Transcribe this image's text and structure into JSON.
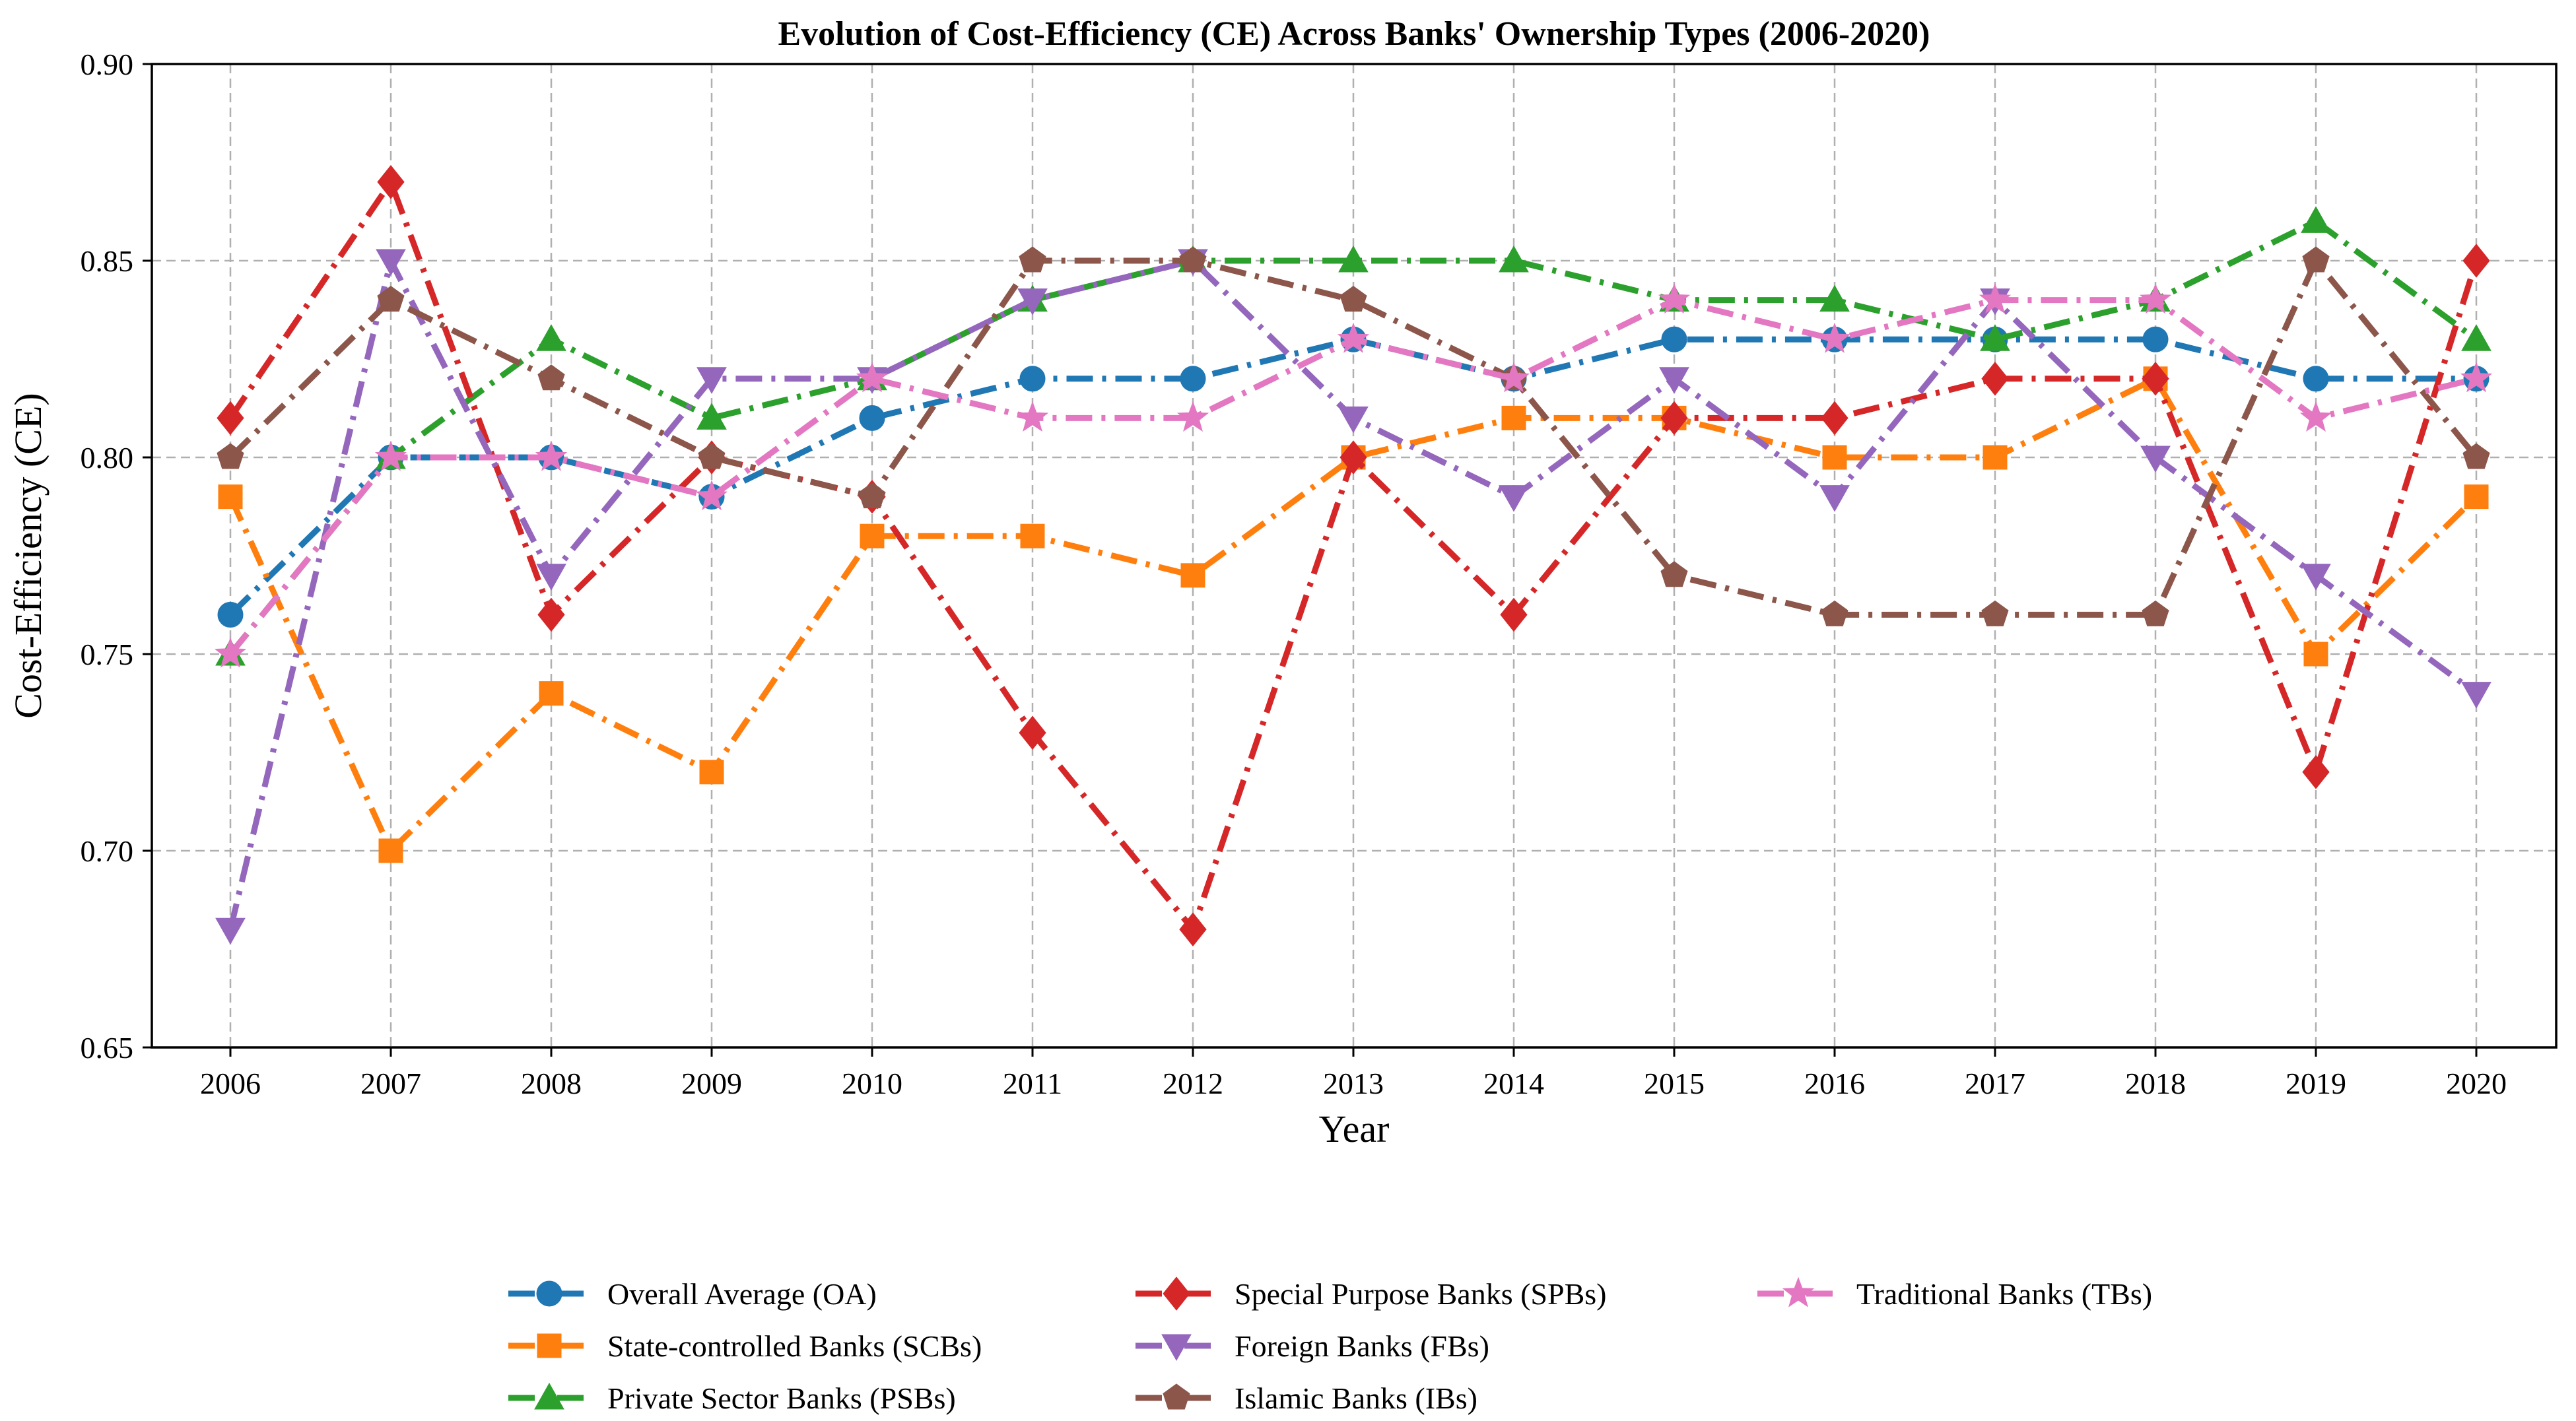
{
  "chart_data": {
    "type": "line",
    "title": "Evolution of Cost-Efficiency (CE) Across Banks' Ownership Types (2006-2020)",
    "xlabel": "Year",
    "ylabel": "Cost-Efficiency (CE)",
    "ylim": [
      0.65,
      0.9
    ],
    "yticks": [
      "0.65",
      "0.70",
      "0.75",
      "0.80",
      "0.85",
      "0.90"
    ],
    "ytick_values": [
      0.65,
      0.7,
      0.75,
      0.8,
      0.85,
      0.9
    ],
    "categories": [
      "2006",
      "2007",
      "2008",
      "2009",
      "2010",
      "2011",
      "2012",
      "2013",
      "2014",
      "2015",
      "2016",
      "2017",
      "2018",
      "2019",
      "2020"
    ],
    "grid": true,
    "legend_position": "bottom",
    "series": [
      {
        "name": "Overall Average (OA)",
        "color": "#1f77b4",
        "marker": "circle",
        "values": [
          0.76,
          0.8,
          0.8,
          0.79,
          0.81,
          0.82,
          0.82,
          0.83,
          0.82,
          0.83,
          0.83,
          0.83,
          0.83,
          0.82,
          0.82
        ]
      },
      {
        "name": "State-controlled Banks (SCBs)",
        "color": "#ff7f0e",
        "marker": "square",
        "values": [
          0.79,
          0.7,
          0.74,
          0.72,
          0.78,
          0.78,
          0.77,
          0.8,
          0.81,
          0.81,
          0.8,
          0.8,
          0.82,
          0.75,
          0.79
        ]
      },
      {
        "name": "Private Sector Banks (PSBs)",
        "color": "#2ca02c",
        "marker": "triangle-up",
        "values": [
          0.75,
          0.8,
          0.83,
          0.81,
          0.82,
          0.84,
          0.85,
          0.85,
          0.85,
          0.84,
          0.84,
          0.83,
          0.84,
          0.86,
          0.83
        ]
      },
      {
        "name": "Special Purpose Banks (SPBs)",
        "color": "#d62728",
        "marker": "diamond",
        "values": [
          0.81,
          0.87,
          0.76,
          0.8,
          0.79,
          0.73,
          0.68,
          0.8,
          0.76,
          0.81,
          0.81,
          0.82,
          0.82,
          0.72,
          0.85
        ]
      },
      {
        "name": "Foreign Banks (FBs)",
        "color": "#9467bd",
        "marker": "triangle-down",
        "values": [
          0.68,
          0.85,
          0.77,
          0.82,
          0.82,
          0.84,
          0.85,
          0.81,
          0.79,
          0.82,
          0.79,
          0.84,
          0.8,
          0.77,
          0.74
        ]
      },
      {
        "name": "Islamic Banks (IBs)",
        "color": "#8c564b",
        "marker": "pentagon",
        "values": [
          0.8,
          0.84,
          0.82,
          0.8,
          0.79,
          0.85,
          0.85,
          0.84,
          0.82,
          0.77,
          0.76,
          0.76,
          0.76,
          0.85,
          0.8
        ]
      },
      {
        "name": "Traditional Banks (TBs)",
        "color": "#e377c2",
        "marker": "star",
        "values": [
          0.75,
          0.8,
          0.8,
          0.79,
          0.82,
          0.81,
          0.81,
          0.83,
          0.82,
          0.84,
          0.83,
          0.84,
          0.84,
          0.81,
          0.82
        ]
      }
    ]
  }
}
